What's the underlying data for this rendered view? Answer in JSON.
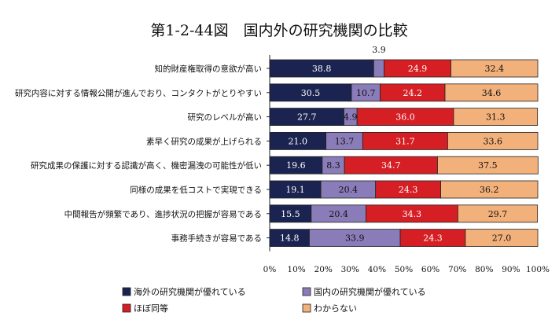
{
  "chart_data": {
    "type": "bar",
    "orientation": "horizontal",
    "stacked": true,
    "title": "第1-2-44図　国内外の研究機関の比較",
    "categories": [
      "知的財産権取得の意欲が高い",
      "研究内容に対する情報公開が進んでおり、コンタクトがとりやすい",
      "研究のレベルが高い",
      "素早く研究の成果が上げられる",
      "研究成果の保護に対する認識が高く、機密漏洩の可能性が低い",
      "同様の成果を低コストで実現できる",
      "中間報告が頻繁であり、進捗状況の把握が容易である",
      "事務手続きが容易である"
    ],
    "series": [
      {
        "name": "海外の研究機関が優れている",
        "color": "#1b2350",
        "label_color": "#ffffff",
        "values": [
          38.8,
          30.5,
          27.7,
          21.0,
          19.6,
          19.1,
          15.5,
          14.8
        ]
      },
      {
        "name": "国内の研究機関が優れている",
        "color": "#8a7cb8",
        "label_color": "#111111",
        "values": [
          3.9,
          10.7,
          4.9,
          13.7,
          8.3,
          20.4,
          20.4,
          33.9
        ]
      },
      {
        "name": "ほぼ同等",
        "color": "#d51f24",
        "label_color": "#ffffff",
        "values": [
          24.9,
          24.2,
          36.0,
          31.7,
          34.7,
          24.3,
          34.3,
          24.3
        ]
      },
      {
        "name": "わからない",
        "color": "#f2b07a",
        "label_color": "#111111",
        "values": [
          32.4,
          34.6,
          31.3,
          33.6,
          37.5,
          36.2,
          29.7,
          27.0
        ]
      }
    ],
    "outside_labels": [
      {
        "category_index": 0,
        "series_index": 1,
        "text": "3.9"
      }
    ],
    "x_ticks": [
      "0%",
      "10%",
      "20%",
      "30%",
      "40%",
      "50%",
      "60%",
      "70%",
      "80%",
      "90%",
      "100%"
    ],
    "xlim": [
      0,
      100
    ],
    "grid": false,
    "legend_position": "bottom"
  }
}
